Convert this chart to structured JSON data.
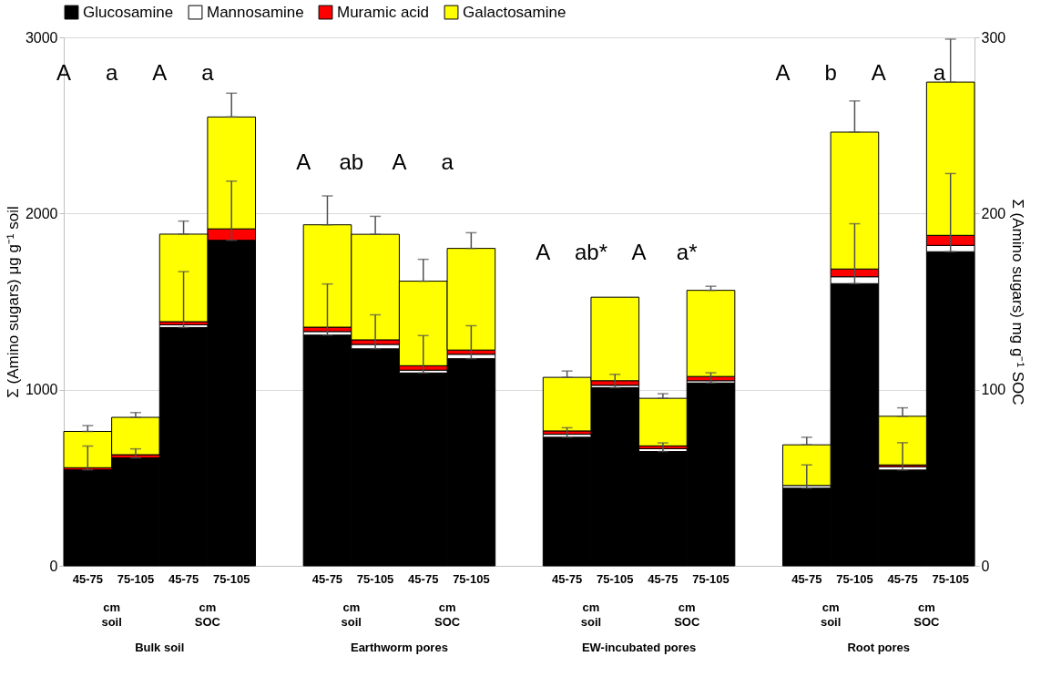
{
  "chart_data": {
    "type": "bar",
    "stacked": true,
    "ylabel": "Σ (Amino sugars) μg g⁻¹ soil",
    "y2label": "Σ (Amino sugars) mg g⁻¹ SOC",
    "categories": [
      "45-75",
      "75-105",
      "45-75",
      "75-105",
      null,
      "45-75",
      "75-105",
      "45-75",
      "75-105",
      null,
      "45-75",
      "75-105",
      "45-75",
      "75-105",
      null,
      "45-75",
      "75-105",
      "45-75",
      "75-105"
    ],
    "ylim": [
      0,
      3000
    ],
    "yticks": [
      0,
      1000,
      2000,
      3000
    ],
    "y2lim": [
      0,
      300
    ],
    "y2ticks": [
      0,
      100,
      200,
      300
    ],
    "grid": "y",
    "legend": "top",
    "series": [
      {
        "name": "Glucosamine",
        "color": "#000000",
        "values": [
          545,
          613,
          null,
          null,
          null,
          1310,
          1232,
          null,
          null,
          null,
          730,
          1011,
          null,
          null,
          null,
          441,
          1602,
          null,
          null
        ],
        "errors": [
          [
            545,
            680
          ],
          [
            613,
            664
          ],
          null,
          null,
          null,
          [
            1310,
            1600
          ],
          [
            1232,
            1425
          ],
          null,
          null,
          null,
          [
            730,
            784
          ],
          [
            1011,
            1087
          ],
          null,
          null,
          null,
          [
            441,
            573
          ],
          [
            1602,
            1942
          ],
          null,
          null
        ]
      },
      {
        "name": "Mannosamine",
        "color": "#ffffff",
        "values": [
          null,
          null,
          null,
          null,
          null,
          20,
          25,
          null,
          null,
          null,
          17,
          14,
          null,
          null,
          null,
          15,
          39,
          null,
          null
        ]
      },
      {
        "name": "Muramic acid",
        "color": "#ff0000",
        "values": [
          12,
          18,
          null,
          null,
          null,
          25,
          26,
          null,
          null,
          null,
          19,
          26,
          null,
          null,
          null,
          null,
          44,
          null,
          null
        ]
      },
      {
        "name": "Galactosamine",
        "color": "#ffff00",
        "values": [
          206,
          212,
          null,
          null,
          null,
          581,
          599,
          null,
          null,
          null,
          304,
          474,
          null,
          null,
          null,
          231,
          777,
          null,
          null
        ],
        "errors": [
          [
            763,
            796
          ],
          [
            843,
            870
          ],
          null,
          null,
          null,
          [
            1936,
            2100
          ],
          [
            1882,
            1984
          ],
          null,
          null,
          null,
          [
            1070,
            1106
          ],
          null,
          null,
          null,
          null,
          [
            687,
            730
          ],
          [
            2462,
            2639
          ],
          null,
          null
        ]
      },
      {
        "axis": "y2",
        "color": "#000000",
        "values": [
          null,
          null,
          135.3,
          184.8,
          null,
          null,
          null,
          109.5,
          117.6,
          null,
          null,
          null,
          64.9,
          103.8,
          null,
          null,
          null,
          54.4,
          178.3
        ],
        "errors": [
          null,
          null,
          [
            135.3,
            167.0
          ],
          [
            184.8,
            218.4
          ],
          null,
          null,
          null,
          [
            109.5,
            130.7
          ],
          [
            117.6,
            136.3
          ],
          null,
          null,
          null,
          [
            64.9,
            69.8
          ],
          [
            103.8,
            109.6
          ],
          null,
          null,
          null,
          [
            54.4,
            69.9
          ],
          [
            178.3,
            222.7
          ]
        ]
      },
      {
        "axis": "y2",
        "color": "#ffffff",
        "values": [
          null,
          null,
          1.5,
          null,
          null,
          null,
          null,
          1.6,
          2.5,
          null,
          null,
          null,
          1.6,
          1.3,
          null,
          null,
          null,
          1.9,
          3.6
        ]
      },
      {
        "axis": "y2",
        "color": "#ff0000",
        "values": [
          null,
          null,
          1.8,
          6.5,
          null,
          null,
          null,
          2.5,
          2.4,
          null,
          null,
          null,
          1.6,
          2.4,
          null,
          null,
          null,
          1.0,
          5.7
        ]
      },
      {
        "axis": "y2",
        "color": "#ffff00",
        "values": [
          null,
          null,
          49.7,
          63.5,
          null,
          null,
          null,
          48.0,
          57.7,
          null,
          null,
          null,
          27.0,
          48.9,
          null,
          null,
          null,
          27.6,
          87.0
        ],
        "errors": [
          null,
          null,
          [
            188.3,
            195.7
          ],
          [
            254.8,
            268.3
          ],
          null,
          null,
          null,
          [
            161.6,
            174.0
          ],
          [
            180.2,
            189.1
          ],
          null,
          null,
          null,
          [
            95.1,
            97.7
          ],
          [
            156.4,
            158.7
          ],
          null,
          null,
          null,
          [
            84.9,
            89.7
          ],
          [
            274.6,
            299.0
          ]
        ]
      }
    ],
    "annotations": [
      "A",
      "a",
      "A",
      "a",
      "A",
      "ab",
      "A",
      "a",
      "A",
      "ab*",
      "A",
      "a*",
      "A",
      "b",
      "A",
      "a",
      "cm soil",
      "cm SOC",
      "cm soil",
      "cm SOC",
      "cm soil",
      "cm SOC",
      "cm soil",
      "cm SOC",
      "Bulk soil",
      "Earthworm pores",
      "EW-incubated pores",
      "Root pores"
    ]
  }
}
